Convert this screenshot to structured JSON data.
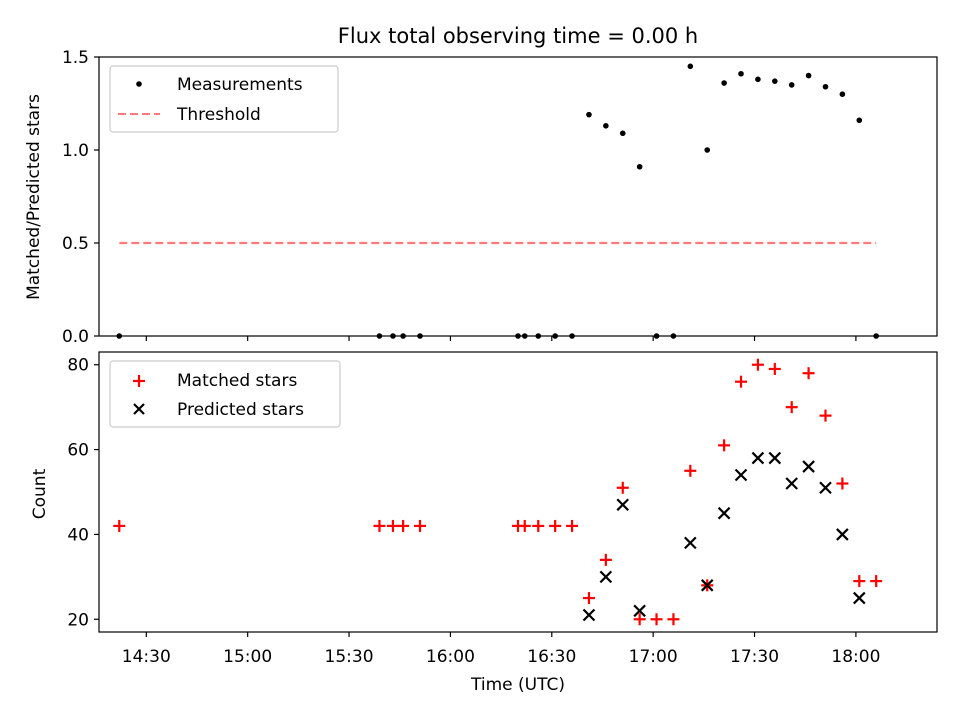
{
  "chart_data": [
    {
      "type": "scatter",
      "title": "Flux total observing time = 0.00 h",
      "xlabel": "",
      "ylabel": "Matched/Predicted stars",
      "xlim": [
        "14:16",
        "18:24"
      ],
      "ylim": [
        0,
        1.5
      ],
      "yticks": [
        "0.0",
        "0.5",
        "1.0",
        "1.5"
      ],
      "x_ticks_shown": false,
      "legend_position": "upper left",
      "series": [
        {
          "name": "Measurements",
          "marker": "dot",
          "color": "#000000",
          "points": [
            {
              "x": "14:22",
              "y": 0.0
            },
            {
              "x": "15:39",
              "y": 0.0
            },
            {
              "x": "15:43",
              "y": 0.0
            },
            {
              "x": "15:46",
              "y": 0.0
            },
            {
              "x": "15:51",
              "y": 0.0
            },
            {
              "x": "16:20",
              "y": 0.0
            },
            {
              "x": "16:22",
              "y": 0.0
            },
            {
              "x": "16:26",
              "y": 0.0
            },
            {
              "x": "16:31",
              "y": 0.0
            },
            {
              "x": "16:36",
              "y": 0.0
            },
            {
              "x": "16:41",
              "y": 1.19
            },
            {
              "x": "16:46",
              "y": 1.13
            },
            {
              "x": "16:51",
              "y": 1.09
            },
            {
              "x": "16:56",
              "y": 0.91
            },
            {
              "x": "17:01",
              "y": 0.0
            },
            {
              "x": "17:06",
              "y": 0.0
            },
            {
              "x": "17:11",
              "y": 1.45
            },
            {
              "x": "17:16",
              "y": 1.0
            },
            {
              "x": "17:21",
              "y": 1.36
            },
            {
              "x": "17:26",
              "y": 1.41
            },
            {
              "x": "17:31",
              "y": 1.38
            },
            {
              "x": "17:36",
              "y": 1.37
            },
            {
              "x": "17:41",
              "y": 1.35
            },
            {
              "x": "17:46",
              "y": 1.4
            },
            {
              "x": "17:51",
              "y": 1.34
            },
            {
              "x": "17:56",
              "y": 1.3
            },
            {
              "x": "18:01",
              "y": 1.16
            },
            {
              "x": "18:06",
              "y": 0.0
            }
          ]
        },
        {
          "name": "Threshold",
          "marker": "dashed-line",
          "color": "#ff7b7b",
          "points": [
            {
              "x": "14:22",
              "y": 0.5
            },
            {
              "x": "18:06",
              "y": 0.5
            }
          ]
        }
      ]
    },
    {
      "type": "scatter",
      "title": "",
      "xlabel": "Time (UTC)",
      "ylabel": "Count",
      "xlim": [
        "14:16",
        "18:24"
      ],
      "ylim": [
        17,
        83
      ],
      "yticks": [
        "20",
        "40",
        "60",
        "80"
      ],
      "xticks": [
        "14:30",
        "15:00",
        "15:30",
        "16:00",
        "16:30",
        "17:00",
        "17:30",
        "18:00"
      ],
      "legend_position": "upper left",
      "series": [
        {
          "name": "Matched stars",
          "marker": "plus",
          "color": "#ff0000",
          "points": [
            {
              "x": "14:22",
              "y": 42
            },
            {
              "x": "15:39",
              "y": 42
            },
            {
              "x": "15:43",
              "y": 42
            },
            {
              "x": "15:46",
              "y": 42
            },
            {
              "x": "15:51",
              "y": 42
            },
            {
              "x": "16:20",
              "y": 42
            },
            {
              "x": "16:22",
              "y": 42
            },
            {
              "x": "16:26",
              "y": 42
            },
            {
              "x": "16:31",
              "y": 42
            },
            {
              "x": "16:36",
              "y": 42
            },
            {
              "x": "16:41",
              "y": 25
            },
            {
              "x": "16:46",
              "y": 34
            },
            {
              "x": "16:51",
              "y": 51
            },
            {
              "x": "16:56",
              "y": 20
            },
            {
              "x": "17:01",
              "y": 20
            },
            {
              "x": "17:06",
              "y": 20
            },
            {
              "x": "17:11",
              "y": 55
            },
            {
              "x": "17:16",
              "y": 28
            },
            {
              "x": "17:21",
              "y": 61
            },
            {
              "x": "17:26",
              "y": 76
            },
            {
              "x": "17:31",
              "y": 80
            },
            {
              "x": "17:36",
              "y": 79
            },
            {
              "x": "17:41",
              "y": 70
            },
            {
              "x": "17:46",
              "y": 78
            },
            {
              "x": "17:51",
              "y": 68
            },
            {
              "x": "17:56",
              "y": 52
            },
            {
              "x": "18:01",
              "y": 29
            },
            {
              "x": "18:06",
              "y": 29
            }
          ]
        },
        {
          "name": "Predicted stars",
          "marker": "x",
          "color": "#000000",
          "points": [
            {
              "x": "16:41",
              "y": 21
            },
            {
              "x": "16:46",
              "y": 30
            },
            {
              "x": "16:51",
              "y": 47
            },
            {
              "x": "16:56",
              "y": 22
            },
            {
              "x": "17:11",
              "y": 38
            },
            {
              "x": "17:16",
              "y": 28
            },
            {
              "x": "17:21",
              "y": 45
            },
            {
              "x": "17:26",
              "y": 54
            },
            {
              "x": "17:31",
              "y": 58
            },
            {
              "x": "17:36",
              "y": 58
            },
            {
              "x": "17:41",
              "y": 52
            },
            {
              "x": "17:46",
              "y": 56
            },
            {
              "x": "17:51",
              "y": 51
            },
            {
              "x": "17:56",
              "y": 40
            },
            {
              "x": "18:01",
              "y": 25
            }
          ]
        }
      ]
    }
  ]
}
